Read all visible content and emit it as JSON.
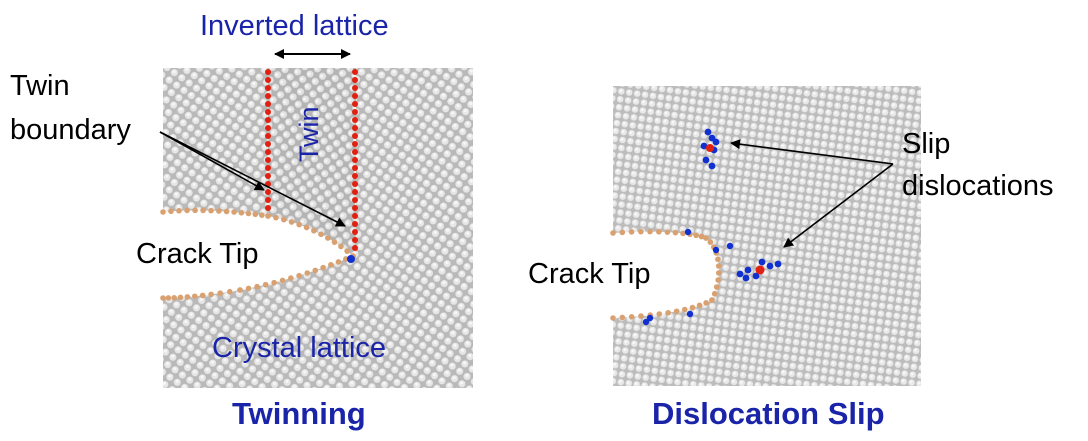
{
  "left_panel": {
    "top_label": "Inverted lattice",
    "twin_label": "Twin",
    "boundary_label_line1": "Twin",
    "boundary_label_line2": "boundary",
    "crack_label": "Crack Tip",
    "lattice_label": "Crystal lattice",
    "caption": "Twinning"
  },
  "right_panel": {
    "slip_label_line1": "Slip",
    "slip_label_line2": "dislocations",
    "crack_label": "Crack Tip",
    "caption": "Dislocation Slip"
  },
  "colors": {
    "label_blue": "#1a24a8",
    "atom_gray": "#c8c8c8",
    "twin_boundary_red": "#e02010",
    "crack_surface_tan": "#d9a070",
    "dislocation_blue": "#1030d0",
    "dislocation_red": "#e02010"
  },
  "icons": [
    "double-headed-arrow",
    "pointer-arrow"
  ]
}
